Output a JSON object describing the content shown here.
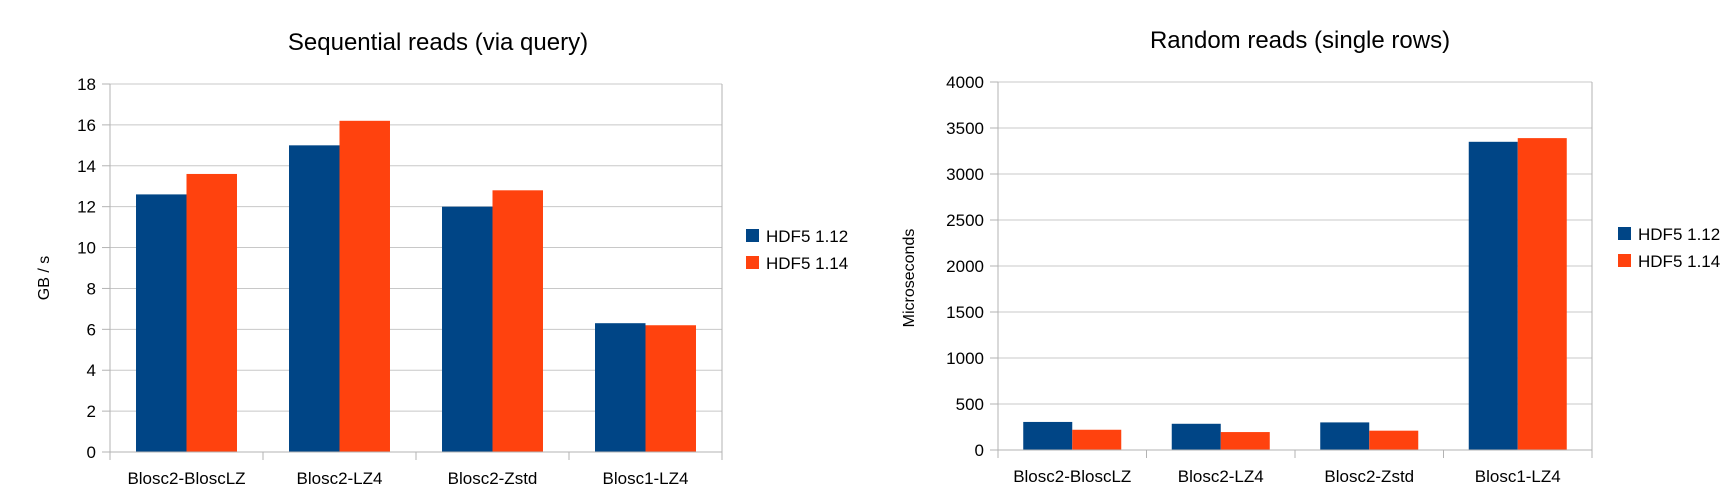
{
  "chart_data": [
    {
      "type": "bar",
      "title": "Sequential reads (via query)",
      "xlabel": "",
      "ylabel": "GB / s",
      "categories": [
        "Blosc2-BloscLZ",
        "Blosc2-LZ4",
        "Blosc2-Zstd",
        "Blosc1-LZ4"
      ],
      "series": [
        {
          "name": "HDF5 1.12",
          "color": "#004586",
          "values": [
            12.6,
            15.0,
            12.0,
            6.3
          ]
        },
        {
          "name": "HDF5 1.14",
          "color": "#ff420e",
          "values": [
            13.6,
            16.2,
            12.8,
            6.2
          ]
        }
      ],
      "ylim": [
        0,
        18
      ],
      "yticks": [
        0,
        2,
        4,
        6,
        8,
        10,
        12,
        14,
        16,
        18
      ],
      "grid": true,
      "legend": "right"
    },
    {
      "type": "bar",
      "title": "Random reads (single rows)",
      "xlabel": "",
      "ylabel": "Microseconds",
      "categories": [
        "Blosc2-BloscLZ",
        "Blosc2-LZ4",
        "Blosc2-Zstd",
        "Blosc1-LZ4"
      ],
      "series": [
        {
          "name": "HDF5 1.12",
          "color": "#004586",
          "values": [
            305,
            285,
            300,
            3350
          ]
        },
        {
          "name": "HDF5 1.14",
          "color": "#ff420e",
          "values": [
            220,
            195,
            210,
            3390
          ]
        }
      ],
      "ylim": [
        0,
        4000
      ],
      "yticks": [
        0,
        500,
        1000,
        1500,
        2000,
        2500,
        3000,
        3500,
        4000
      ],
      "grid": true,
      "legend": "right"
    }
  ]
}
